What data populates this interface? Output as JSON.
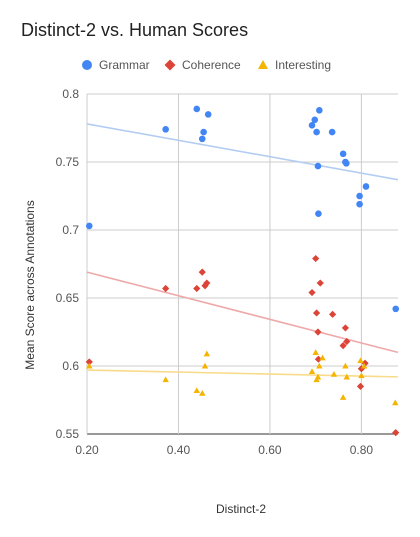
{
  "chart_data": {
    "type": "scatter",
    "title": "Distinct-2 vs. Human Scores",
    "xlabel": "Distinct-2",
    "ylabel": "Mean Score across Annotations",
    "xlim": [
      0.2,
      0.88
    ],
    "ylim": [
      0.55,
      0.8
    ],
    "xticks": [
      "0.20",
      "0.40",
      "0.60",
      "0.80"
    ],
    "xtick_values": [
      0.2,
      0.4,
      0.6,
      0.8
    ],
    "yticks": [
      "0.55",
      "0.6",
      "0.65",
      "0.7",
      "0.75",
      "0.8"
    ],
    "ytick_values": [
      0.55,
      0.6,
      0.65,
      0.7,
      0.75,
      0.8
    ],
    "grid": true,
    "legend_position": "top",
    "series": [
      {
        "name": "Grammar",
        "marker": "circle",
        "color": "#4285f4",
        "trend_color": "#b3cdf2",
        "trendline": [
          [
            0.2,
            0.778
          ],
          [
            0.88,
            0.737
          ]
        ],
        "points": [
          [
            0.205,
            0.703
          ],
          [
            0.372,
            0.774
          ],
          [
            0.44,
            0.789
          ],
          [
            0.452,
            0.767
          ],
          [
            0.455,
            0.772
          ],
          [
            0.465,
            0.785
          ],
          [
            0.692,
            0.777
          ],
          [
            0.698,
            0.781
          ],
          [
            0.702,
            0.772
          ],
          [
            0.705,
            0.747
          ],
          [
            0.706,
            0.712
          ],
          [
            0.708,
            0.788
          ],
          [
            0.736,
            0.772
          ],
          [
            0.76,
            0.756
          ],
          [
            0.765,
            0.75
          ],
          [
            0.767,
            0.749
          ],
          [
            0.796,
            0.725
          ],
          [
            0.796,
            0.719
          ],
          [
            0.81,
            0.732
          ],
          [
            0.875,
            0.642
          ]
        ]
      },
      {
        "name": "Coherence",
        "marker": "diamond",
        "color": "#db4437",
        "trend_color": "#eeaaaa",
        "trendline": [
          [
            0.2,
            0.669
          ],
          [
            0.88,
            0.61
          ]
        ],
        "points": [
          [
            0.205,
            0.603
          ],
          [
            0.372,
            0.657
          ],
          [
            0.44,
            0.657
          ],
          [
            0.452,
            0.669
          ],
          [
            0.458,
            0.659
          ],
          [
            0.462,
            0.661
          ],
          [
            0.692,
            0.654
          ],
          [
            0.7,
            0.679
          ],
          [
            0.702,
            0.639
          ],
          [
            0.705,
            0.625
          ],
          [
            0.706,
            0.605
          ],
          [
            0.71,
            0.661
          ],
          [
            0.737,
            0.638
          ],
          [
            0.76,
            0.615
          ],
          [
            0.765,
            0.628
          ],
          [
            0.768,
            0.618
          ],
          [
            0.798,
            0.585
          ],
          [
            0.8,
            0.598
          ],
          [
            0.808,
            0.602
          ],
          [
            0.875,
            0.551
          ]
        ]
      },
      {
        "name": "Interesting",
        "marker": "triangle",
        "color": "#f4b400",
        "trend_color": "#f8db8a",
        "trendline": [
          [
            0.2,
            0.597
          ],
          [
            0.88,
            0.592
          ]
        ],
        "points": [
          [
            0.205,
            0.6
          ],
          [
            0.372,
            0.59
          ],
          [
            0.44,
            0.582
          ],
          [
            0.452,
            0.58
          ],
          [
            0.458,
            0.6
          ],
          [
            0.462,
            0.609
          ],
          [
            0.692,
            0.596
          ],
          [
            0.7,
            0.61
          ],
          [
            0.702,
            0.59
          ],
          [
            0.705,
            0.592
          ],
          [
            0.708,
            0.6
          ],
          [
            0.715,
            0.606
          ],
          [
            0.74,
            0.594
          ],
          [
            0.76,
            0.577
          ],
          [
            0.765,
            0.6
          ],
          [
            0.768,
            0.592
          ],
          [
            0.798,
            0.604
          ],
          [
            0.8,
            0.593
          ],
          [
            0.806,
            0.6
          ],
          [
            0.874,
            0.573
          ]
        ]
      }
    ]
  }
}
